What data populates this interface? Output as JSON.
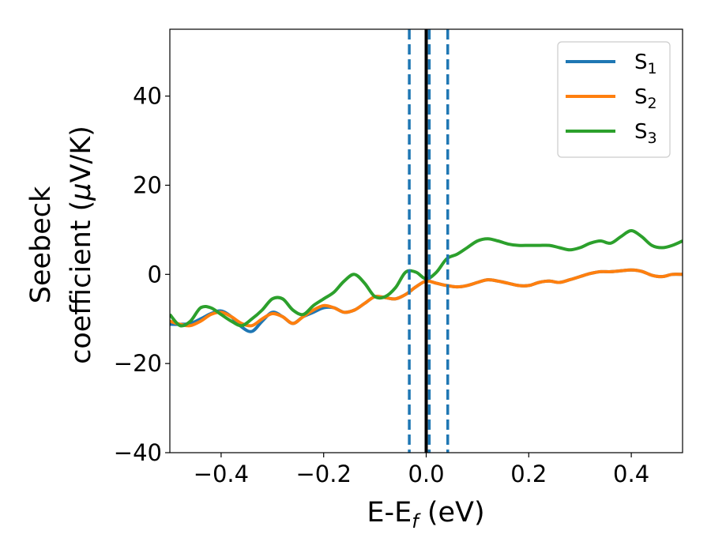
{
  "chart_data": {
    "type": "line",
    "xlabel_parts": [
      "E-E",
      "f",
      " (eV)"
    ],
    "ylabel_line1": "Seebeck",
    "ylabel_line2_parts": [
      "coefficient  (",
      "μ",
      "V/K)"
    ],
    "xlim": [
      -0.5,
      0.5
    ],
    "ylim": [
      -40,
      55
    ],
    "xticks": [
      -0.4,
      -0.2,
      0.0,
      0.2,
      0.4
    ],
    "xtick_labels": [
      "−0.4",
      "−0.2",
      "0.0",
      "0.2",
      "0.4"
    ],
    "yticks": [
      -40,
      -20,
      0,
      20,
      40
    ],
    "ytick_labels": [
      "−40",
      "−20",
      "0",
      "20",
      "40"
    ],
    "grid": false,
    "legend_position": "top-right",
    "vlines": [
      {
        "x": -0.033,
        "style": "dashed",
        "color": "#1f77b4"
      },
      {
        "x": 0.0,
        "style": "solid",
        "color": "#000000"
      },
      {
        "x": 0.006,
        "style": "dashed",
        "color": "#1f77b4"
      },
      {
        "x": 0.042,
        "style": "dashed",
        "color": "#1f77b4"
      }
    ],
    "series": [
      {
        "name_base": "S",
        "name_sub": "1",
        "color": "#1f77b4",
        "x": [
          -0.5,
          -0.48,
          -0.46,
          -0.44,
          -0.42,
          -0.4,
          -0.38,
          -0.36,
          -0.34,
          -0.32,
          -0.3,
          -0.28,
          -0.26,
          -0.24,
          -0.22,
          -0.2,
          -0.18,
          -0.16,
          -0.14,
          -0.12,
          -0.1,
          -0.08,
          -0.06,
          -0.04,
          -0.02,
          0.0,
          0.02,
          0.04,
          0.06,
          0.08,
          0.1,
          0.12,
          0.14,
          0.16,
          0.18,
          0.2,
          0.22,
          0.24,
          0.26,
          0.28,
          0.3,
          0.32,
          0.34,
          0.36,
          0.38,
          0.4,
          0.42,
          0.44,
          0.46,
          0.48,
          0.5
        ],
        "y": [
          -11.2,
          -11.2,
          -11.0,
          -10.0,
          -8.8,
          -8.2,
          -9.5,
          -11.8,
          -12.8,
          -10.5,
          -8.5,
          -9.5,
          -11.0,
          -9.5,
          -8.5,
          -7.5,
          -7.5,
          -8.5,
          -8.0,
          -6.5,
          -5.0,
          -5.2,
          -5.5,
          -4.5,
          -2.8,
          -1.5,
          -2.0,
          -2.5,
          -2.8,
          -2.5,
          -1.8,
          -1.2,
          -1.5,
          -2.0,
          -2.5,
          -2.5,
          -1.8,
          -1.5,
          -1.8,
          -1.2,
          -0.5,
          0.2,
          0.6,
          0.6,
          0.8,
          1.0,
          0.7,
          -0.2,
          -0.5,
          0.0,
          0.0
        ]
      },
      {
        "name_base": "S",
        "name_sub": "2",
        "color": "#ff7f0e",
        "x": [
          -0.5,
          -0.48,
          -0.46,
          -0.44,
          -0.42,
          -0.4,
          -0.38,
          -0.36,
          -0.34,
          -0.32,
          -0.3,
          -0.28,
          -0.26,
          -0.24,
          -0.22,
          -0.2,
          -0.18,
          -0.16,
          -0.14,
          -0.12,
          -0.1,
          -0.08,
          -0.06,
          -0.04,
          -0.02,
          0.0,
          0.02,
          0.04,
          0.06,
          0.08,
          0.1,
          0.12,
          0.14,
          0.16,
          0.18,
          0.2,
          0.22,
          0.24,
          0.26,
          0.28,
          0.3,
          0.32,
          0.34,
          0.36,
          0.38,
          0.4,
          0.42,
          0.44,
          0.46,
          0.48,
          0.5
        ],
        "y": [
          -10.5,
          -11.2,
          -11.5,
          -10.5,
          -9.0,
          -8.5,
          -9.5,
          -11.0,
          -11.5,
          -10.0,
          -8.8,
          -9.5,
          -11.0,
          -9.5,
          -8.0,
          -7.0,
          -7.5,
          -8.5,
          -8.0,
          -6.5,
          -5.0,
          -5.2,
          -5.5,
          -4.5,
          -2.8,
          -1.5,
          -2.0,
          -2.5,
          -2.8,
          -2.5,
          -1.8,
          -1.2,
          -1.5,
          -2.0,
          -2.5,
          -2.5,
          -1.8,
          -1.5,
          -1.8,
          -1.2,
          -0.5,
          0.2,
          0.6,
          0.6,
          0.8,
          1.0,
          0.7,
          -0.2,
          -0.5,
          0.0,
          0.0
        ]
      },
      {
        "name_base": "S",
        "name_sub": "3",
        "color": "#2ca02c",
        "x": [
          -0.5,
          -0.48,
          -0.46,
          -0.44,
          -0.42,
          -0.4,
          -0.38,
          -0.36,
          -0.34,
          -0.32,
          -0.3,
          -0.28,
          -0.26,
          -0.24,
          -0.22,
          -0.2,
          -0.18,
          -0.16,
          -0.14,
          -0.12,
          -0.1,
          -0.08,
          -0.06,
          -0.04,
          -0.02,
          0.0,
          0.02,
          0.04,
          0.06,
          0.08,
          0.1,
          0.12,
          0.14,
          0.16,
          0.18,
          0.2,
          0.22,
          0.24,
          0.26,
          0.28,
          0.3,
          0.32,
          0.34,
          0.36,
          0.38,
          0.4,
          0.42,
          0.44,
          0.46,
          0.48,
          0.5
        ],
        "y": [
          -9.0,
          -11.5,
          -10.5,
          -7.5,
          -7.5,
          -9.0,
          -10.5,
          -11.5,
          -10.0,
          -8.0,
          -5.5,
          -5.5,
          -8.0,
          -9.0,
          -7.0,
          -5.5,
          -4.0,
          -1.5,
          0.0,
          -2.0,
          -5.0,
          -5.0,
          -3.0,
          0.5,
          0.5,
          -1.0,
          0.5,
          3.5,
          4.5,
          6.0,
          7.5,
          8.0,
          7.5,
          6.8,
          6.5,
          6.5,
          6.5,
          6.5,
          6.0,
          5.5,
          6.0,
          7.0,
          7.5,
          7.0,
          8.5,
          9.8,
          8.5,
          6.5,
          6.0,
          6.5,
          7.5
        ]
      }
    ]
  }
}
